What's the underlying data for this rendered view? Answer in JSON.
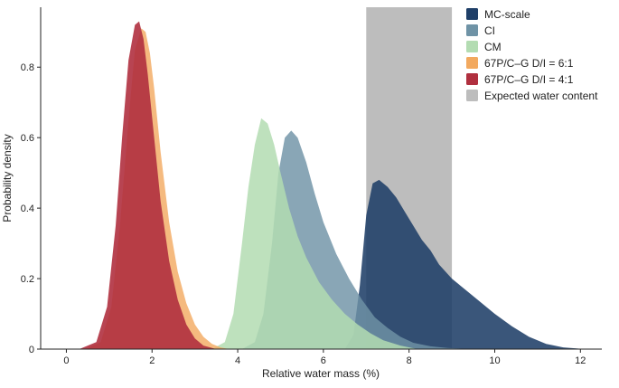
{
  "chart_data": {
    "type": "area",
    "xlabel": "Relative water mass (%)",
    "ylabel": "Probability density",
    "xlim": [
      -0.6,
      12.5
    ],
    "ylim": [
      0,
      0.97
    ],
    "xticks": [
      0,
      2,
      4,
      6,
      8,
      10,
      12
    ],
    "yticks": [
      0,
      0.2,
      0.4,
      0.6,
      0.8
    ],
    "ytick_labels": [
      "0",
      "0.2",
      "0.4",
      "0.6",
      "0.8"
    ],
    "legend_position": "top-right",
    "shaded_band": {
      "name": "Expected water content",
      "x_range": [
        7,
        9
      ],
      "color": "#bdbdbd"
    },
    "series": [
      {
        "name": "MC-scale",
        "color": "#1f3f68",
        "opacity": 0.88,
        "x": [
          6.5,
          6.7,
          6.85,
          7.0,
          7.15,
          7.3,
          7.5,
          7.7,
          7.9,
          8.1,
          8.3,
          8.5,
          8.7,
          9.0,
          9.3,
          9.6,
          10.0,
          10.4,
          10.8,
          11.2,
          11.6,
          12.0,
          12.3
        ],
        "y": [
          0,
          0.04,
          0.18,
          0.38,
          0.47,
          0.48,
          0.46,
          0.43,
          0.39,
          0.35,
          0.31,
          0.28,
          0.24,
          0.2,
          0.17,
          0.14,
          0.1,
          0.065,
          0.035,
          0.015,
          0.005,
          0.001,
          0
        ]
      },
      {
        "name": "CI",
        "color": "#6f93a6",
        "opacity": 0.82,
        "x": [
          4.1,
          4.4,
          4.6,
          4.8,
          4.95,
          5.1,
          5.25,
          5.4,
          5.6,
          5.8,
          6.0,
          6.3,
          6.6,
          6.9,
          7.2,
          7.5,
          7.8,
          8.1,
          8.5,
          8.9,
          9.3,
          9.6
        ],
        "y": [
          0,
          0.02,
          0.1,
          0.3,
          0.5,
          0.6,
          0.62,
          0.6,
          0.53,
          0.44,
          0.36,
          0.27,
          0.2,
          0.14,
          0.09,
          0.06,
          0.035,
          0.018,
          0.008,
          0.003,
          0.001,
          0
        ]
      },
      {
        "name": "CM",
        "color": "#b3dcb2",
        "opacity": 0.85,
        "x": [
          3.4,
          3.7,
          3.9,
          4.1,
          4.25,
          4.4,
          4.55,
          4.7,
          4.85,
          5.0,
          5.2,
          5.4,
          5.6,
          5.9,
          6.2,
          6.5,
          6.8,
          7.1,
          7.4,
          7.8,
          8.2
        ],
        "y": [
          0,
          0.02,
          0.1,
          0.3,
          0.46,
          0.58,
          0.655,
          0.64,
          0.58,
          0.5,
          0.4,
          0.32,
          0.26,
          0.19,
          0.14,
          0.1,
          0.07,
          0.045,
          0.025,
          0.01,
          0
        ]
      },
      {
        "name": "67P/C–G D/I = 6:1",
        "color": "#f2a95f",
        "opacity": 0.8,
        "x": [
          0.45,
          0.8,
          1.05,
          1.25,
          1.45,
          1.6,
          1.75,
          1.85,
          1.95,
          2.05,
          2.2,
          2.4,
          2.6,
          2.8,
          3.0,
          3.2,
          3.4,
          3.6,
          3.8
        ],
        "y": [
          0,
          0.02,
          0.12,
          0.35,
          0.65,
          0.85,
          0.91,
          0.9,
          0.84,
          0.74,
          0.56,
          0.36,
          0.22,
          0.13,
          0.07,
          0.035,
          0.015,
          0.005,
          0
        ]
      },
      {
        "name": "67P/C–G D/I = 4:1",
        "color": "#b0303f",
        "opacity": 0.9,
        "x": [
          0.3,
          0.7,
          0.95,
          1.15,
          1.3,
          1.45,
          1.6,
          1.7,
          1.8,
          1.9,
          2.05,
          2.2,
          2.4,
          2.6,
          2.8,
          3.0,
          3.2,
          3.5
        ],
        "y": [
          0,
          0.02,
          0.12,
          0.35,
          0.6,
          0.82,
          0.92,
          0.93,
          0.88,
          0.78,
          0.6,
          0.42,
          0.25,
          0.14,
          0.07,
          0.03,
          0.01,
          0
        ]
      }
    ]
  }
}
